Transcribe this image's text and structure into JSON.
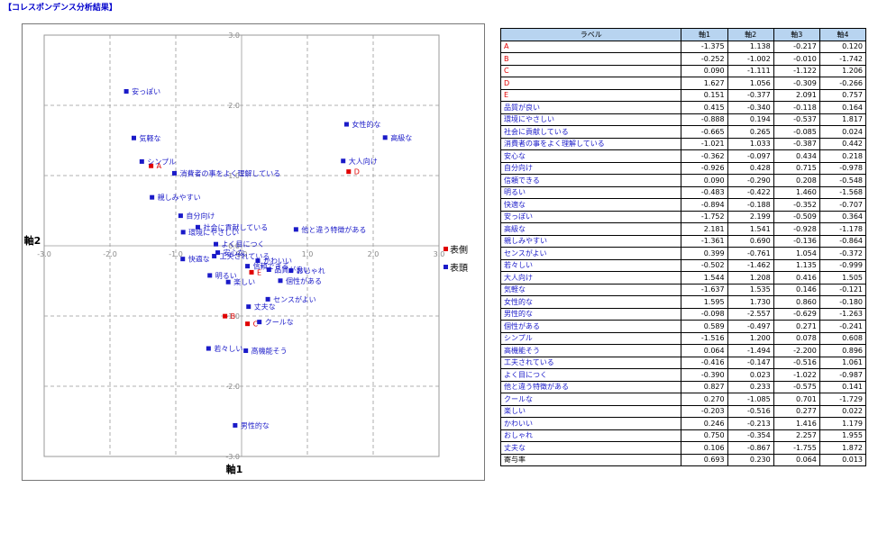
{
  "page": {
    "title": "【コレスポンデンス分析結果】"
  },
  "colors": {
    "row_point": "#e00000",
    "col_point": "#1a1ac8",
    "label_text": "#1a1ac8",
    "row_label_text": "#e00000",
    "grid": "#999999",
    "table_header_bg": "#b8d4f0"
  },
  "chart_data": {
    "type": "scatter",
    "xlabel": "軸1",
    "ylabel": "軸2",
    "xlim": [
      -3.0,
      3.0
    ],
    "ylim": [
      -3.0,
      3.0
    ],
    "x_ticks": [
      "-3.0",
      "-2.0",
      "-1.0",
      "0.0",
      "1.0",
      "2.0",
      "3.0"
    ],
    "y_ticks": [
      "3.0",
      "2.0",
      "1.0",
      "0.0",
      "-1.0",
      "-2.0",
      "-3.0"
    ],
    "grid": true,
    "legend_position": "right",
    "series": [
      {
        "name": "表側",
        "color": "#e00000",
        "points": [
          {
            "label": "A",
            "x": -1.375,
            "y": 1.138
          },
          {
            "label": "B",
            "x": -0.252,
            "y": -1.002
          },
          {
            "label": "C",
            "x": 0.09,
            "y": -1.111
          },
          {
            "label": "D",
            "x": 1.627,
            "y": 1.056
          },
          {
            "label": "E",
            "x": 0.151,
            "y": -0.377
          }
        ]
      },
      {
        "name": "表頭",
        "color": "#1a1ac8",
        "points": [
          {
            "label": "品質が良い",
            "x": 0.415,
            "y": -0.34
          },
          {
            "label": "環境にやさしい",
            "x": -0.888,
            "y": 0.194
          },
          {
            "label": "社会に貢献している",
            "x": -0.665,
            "y": 0.265
          },
          {
            "label": "消費者の事をよく理解している",
            "x": -1.021,
            "y": 1.033
          },
          {
            "label": "安心な",
            "x": -0.362,
            "y": -0.097
          },
          {
            "label": "自分向け",
            "x": -0.926,
            "y": 0.428
          },
          {
            "label": "信頼できる",
            "x": 0.09,
            "y": -0.29
          },
          {
            "label": "明るい",
            "x": -0.483,
            "y": -0.422
          },
          {
            "label": "快適な",
            "x": -0.894,
            "y": -0.188
          },
          {
            "label": "安っぽい",
            "x": -1.752,
            "y": 2.199
          },
          {
            "label": "高級な",
            "x": 2.181,
            "y": 1.541
          },
          {
            "label": "親しみやすい",
            "x": -1.361,
            "y": 0.69
          },
          {
            "label": "センスがよい",
            "x": 0.399,
            "y": -0.761
          },
          {
            "label": "若々しい",
            "x": -0.502,
            "y": -1.462
          },
          {
            "label": "大人向け",
            "x": 1.544,
            "y": 1.208
          },
          {
            "label": "気軽な",
            "x": -1.637,
            "y": 1.535
          },
          {
            "label": "女性的な",
            "x": 1.595,
            "y": 1.73
          },
          {
            "label": "男性的な",
            "x": -0.098,
            "y": -2.557
          },
          {
            "label": "個性がある",
            "x": 0.589,
            "y": -0.497
          },
          {
            "label": "シンプル",
            "x": -1.516,
            "y": 1.2
          },
          {
            "label": "高機能そう",
            "x": 0.064,
            "y": -1.494
          },
          {
            "label": "工夫されている",
            "x": -0.416,
            "y": -0.147
          },
          {
            "label": "よく目につく",
            "x": -0.39,
            "y": 0.023
          },
          {
            "label": "他と違う特徴がある",
            "x": 0.827,
            "y": 0.233
          },
          {
            "label": "クールな",
            "x": 0.27,
            "y": -1.085
          },
          {
            "label": "楽しい",
            "x": -0.203,
            "y": -0.516
          },
          {
            "label": "かわいい",
            "x": 0.246,
            "y": -0.213
          },
          {
            "label": "おしゃれ",
            "x": 0.75,
            "y": -0.354
          },
          {
            "label": "丈夫な",
            "x": 0.106,
            "y": -0.867
          }
        ]
      }
    ]
  },
  "table": {
    "headers": [
      "ラベル",
      "軸1",
      "軸2",
      "軸3",
      "軸4"
    ],
    "rows": [
      {
        "label": "A",
        "kind": "row",
        "values": [
          "-1.375",
          "1.138",
          "-0.217",
          "0.120"
        ]
      },
      {
        "label": "B",
        "kind": "row",
        "values": [
          "-0.252",
          "-1.002",
          "-0.010",
          "-1.742"
        ]
      },
      {
        "label": "C",
        "kind": "row",
        "values": [
          "0.090",
          "-1.111",
          "-1.122",
          "1.206"
        ]
      },
      {
        "label": "D",
        "kind": "row",
        "values": [
          "1.627",
          "1.056",
          "-0.309",
          "-0.266"
        ]
      },
      {
        "label": "E",
        "kind": "row",
        "values": [
          "0.151",
          "-0.377",
          "2.091",
          "0.757"
        ]
      },
      {
        "label": "品質が良い",
        "kind": "col",
        "values": [
          "0.415",
          "-0.340",
          "-0.118",
          "0.164"
        ]
      },
      {
        "label": "環境にやさしい",
        "kind": "col",
        "values": [
          "-0.888",
          "0.194",
          "-0.537",
          "1.817"
        ]
      },
      {
        "label": "社会に貢献している",
        "kind": "col",
        "values": [
          "-0.665",
          "0.265",
          "-0.085",
          "0.024"
        ]
      },
      {
        "label": "消費者の事をよく理解している",
        "kind": "col",
        "values": [
          "-1.021",
          "1.033",
          "-0.387",
          "0.442"
        ]
      },
      {
        "label": "安心な",
        "kind": "col",
        "values": [
          "-0.362",
          "-0.097",
          "0.434",
          "0.218"
        ]
      },
      {
        "label": "自分向け",
        "kind": "col",
        "values": [
          "-0.926",
          "0.428",
          "0.715",
          "-0.978"
        ]
      },
      {
        "label": "信頼できる",
        "kind": "col",
        "values": [
          "0.090",
          "-0.290",
          "0.208",
          "-0.548"
        ]
      },
      {
        "label": "明るい",
        "kind": "col",
        "values": [
          "-0.483",
          "-0.422",
          "1.460",
          "-1.568"
        ]
      },
      {
        "label": "快適な",
        "kind": "col",
        "values": [
          "-0.894",
          "-0.188",
          "-0.352",
          "-0.707"
        ]
      },
      {
        "label": "安っぽい",
        "kind": "col",
        "values": [
          "-1.752",
          "2.199",
          "-0.509",
          "0.364"
        ]
      },
      {
        "label": "高級な",
        "kind": "col",
        "values": [
          "2.181",
          "1.541",
          "-0.928",
          "-1.178"
        ]
      },
      {
        "label": "親しみやすい",
        "kind": "col",
        "values": [
          "-1.361",
          "0.690",
          "-0.136",
          "-0.864"
        ]
      },
      {
        "label": "センスがよい",
        "kind": "col",
        "values": [
          "0.399",
          "-0.761",
          "1.054",
          "-0.372"
        ]
      },
      {
        "label": "若々しい",
        "kind": "col",
        "values": [
          "-0.502",
          "-1.462",
          "1.135",
          "-0.999"
        ]
      },
      {
        "label": "大人向け",
        "kind": "col",
        "values": [
          "1.544",
          "1.208",
          "0.416",
          "1.505"
        ]
      },
      {
        "label": "気軽な",
        "kind": "col",
        "values": [
          "-1.637",
          "1.535",
          "0.146",
          "-0.121"
        ]
      },
      {
        "label": "女性的な",
        "kind": "col",
        "values": [
          "1.595",
          "1.730",
          "0.860",
          "-0.180"
        ]
      },
      {
        "label": "男性的な",
        "kind": "col",
        "values": [
          "-0.098",
          "-2.557",
          "-0.629",
          "-1.263"
        ]
      },
      {
        "label": "個性がある",
        "kind": "col",
        "values": [
          "0.589",
          "-0.497",
          "0.271",
          "-0.241"
        ]
      },
      {
        "label": "シンプル",
        "kind": "col",
        "values": [
          "-1.516",
          "1.200",
          "0.078",
          "0.608"
        ]
      },
      {
        "label": "高機能そう",
        "kind": "col",
        "values": [
          "0.064",
          "-1.494",
          "-2.200",
          "0.896"
        ]
      },
      {
        "label": "工夫されている",
        "kind": "col",
        "values": [
          "-0.416",
          "-0.147",
          "-0.516",
          "1.061"
        ]
      },
      {
        "label": "よく目につく",
        "kind": "col",
        "values": [
          "-0.390",
          "0.023",
          "-1.022",
          "-0.987"
        ]
      },
      {
        "label": "他と違う特徴がある",
        "kind": "col",
        "values": [
          "0.827",
          "0.233",
          "-0.575",
          "0.141"
        ]
      },
      {
        "label": "クールな",
        "kind": "col",
        "values": [
          "0.270",
          "-1.085",
          "0.701",
          "-1.729"
        ]
      },
      {
        "label": "楽しい",
        "kind": "col",
        "values": [
          "-0.203",
          "-0.516",
          "0.277",
          "0.022"
        ]
      },
      {
        "label": "かわいい",
        "kind": "col",
        "values": [
          "0.246",
          "-0.213",
          "1.416",
          "1.179"
        ]
      },
      {
        "label": "おしゃれ",
        "kind": "col",
        "values": [
          "0.750",
          "-0.354",
          "2.257",
          "1.955"
        ]
      },
      {
        "label": "丈夫な",
        "kind": "col",
        "values": [
          "0.106",
          "-0.867",
          "-1.755",
          "1.872"
        ]
      },
      {
        "label": "寄与率",
        "kind": "total",
        "values": [
          "0.693",
          "0.230",
          "0.064",
          "0.013"
        ]
      }
    ]
  }
}
